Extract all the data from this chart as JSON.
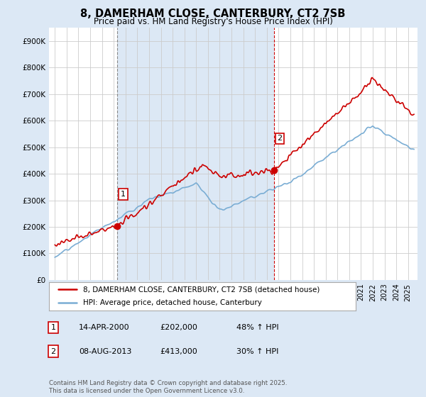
{
  "title": "8, DAMERHAM CLOSE, CANTERBURY, CT2 7SB",
  "subtitle": "Price paid vs. HM Land Registry's House Price Index (HPI)",
  "ylim": [
    0,
    950000
  ],
  "yticks": [
    0,
    100000,
    200000,
    300000,
    400000,
    500000,
    600000,
    700000,
    800000,
    900000
  ],
  "ytick_labels": [
    "£0",
    "£100K",
    "£200K",
    "£300K",
    "£400K",
    "£500K",
    "£600K",
    "£700K",
    "£800K",
    "£900K"
  ],
  "bg_color": "#dce8f5",
  "plot_bg_color": "#ffffff",
  "shaded_bg_color": "#dce8f5",
  "grid_color": "#cccccc",
  "sale1_date": 2000.29,
  "sale1_price": 202000,
  "sale2_date": 2013.6,
  "sale2_price": 413000,
  "legend_line1": "8, DAMERHAM CLOSE, CANTERBURY, CT2 7SB (detached house)",
  "legend_line2": "HPI: Average price, detached house, Canterbury",
  "table_row1": [
    "1",
    "14-APR-2000",
    "£202,000",
    "48% ↑ HPI"
  ],
  "table_row2": [
    "2",
    "08-AUG-2013",
    "£413,000",
    "30% ↑ HPI"
  ],
  "footer": "Contains HM Land Registry data © Crown copyright and database right 2025.\nThis data is licensed under the Open Government Licence v3.0.",
  "red_color": "#cc0000",
  "blue_color": "#7aadd4",
  "vline1_color": "#888888",
  "vline2_color": "#cc0000"
}
